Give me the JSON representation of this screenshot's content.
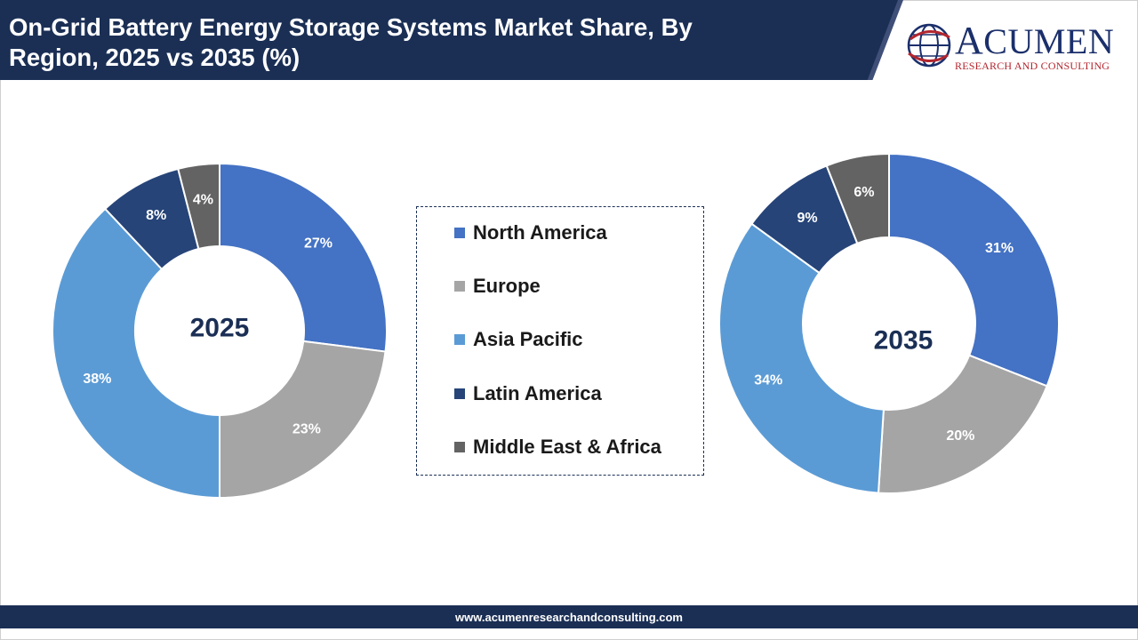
{
  "header": {
    "title_line1": "On-Grid Battery Energy Storage Systems Market Share, By",
    "title_line2": "Region, 2025 vs 2035 (%)"
  },
  "logo": {
    "word_first": "A",
    "word_rest": "CUMEN",
    "tagline": "RESEARCH AND CONSULTING"
  },
  "colors": {
    "banner": "#1b2f55",
    "north_america": "#4472c4",
    "europe": "#a5a5a5",
    "asia_pacific": "#5b9bd5",
    "latin_america": "#264478",
    "middle_east_africa": "#636363"
  },
  "legend": {
    "items": [
      {
        "label": "North America",
        "color": "#4472c4"
      },
      {
        "label": "Europe",
        "color": "#a5a5a5"
      },
      {
        "label": "Asia Pacific",
        "color": "#5b9bd5"
      },
      {
        "label": "Latin America",
        "color": "#264478"
      },
      {
        "label": "Middle East & Africa",
        "color": "#636363"
      }
    ]
  },
  "chart_data": [
    {
      "type": "pie",
      "variant": "donut",
      "center_label": "2025",
      "categories": [
        "North America",
        "Europe",
        "Asia Pacific",
        "Latin America",
        "Middle East & Africa"
      ],
      "values": [
        27,
        23,
        38,
        8,
        4
      ],
      "data_labels": [
        "27%",
        "23%",
        "38%",
        "8%",
        "4%"
      ],
      "colors": [
        "#4472c4",
        "#a5a5a5",
        "#5b9bd5",
        "#264478",
        "#636363"
      ],
      "legend_placement": "center"
    },
    {
      "type": "pie",
      "variant": "donut",
      "center_label": "2035",
      "categories": [
        "North America",
        "Europe",
        "Asia Pacific",
        "Latin America",
        "Middle East & Africa"
      ],
      "values": [
        31,
        20,
        34,
        9,
        6
      ],
      "data_labels": [
        "31%",
        "20%",
        "34%",
        "9%",
        "6%"
      ],
      "colors": [
        "#4472c4",
        "#a5a5a5",
        "#5b9bd5",
        "#264478",
        "#636363"
      ],
      "legend_placement": "center"
    }
  ],
  "footer": {
    "url": "www.acumenresearchandconsulting.com"
  }
}
